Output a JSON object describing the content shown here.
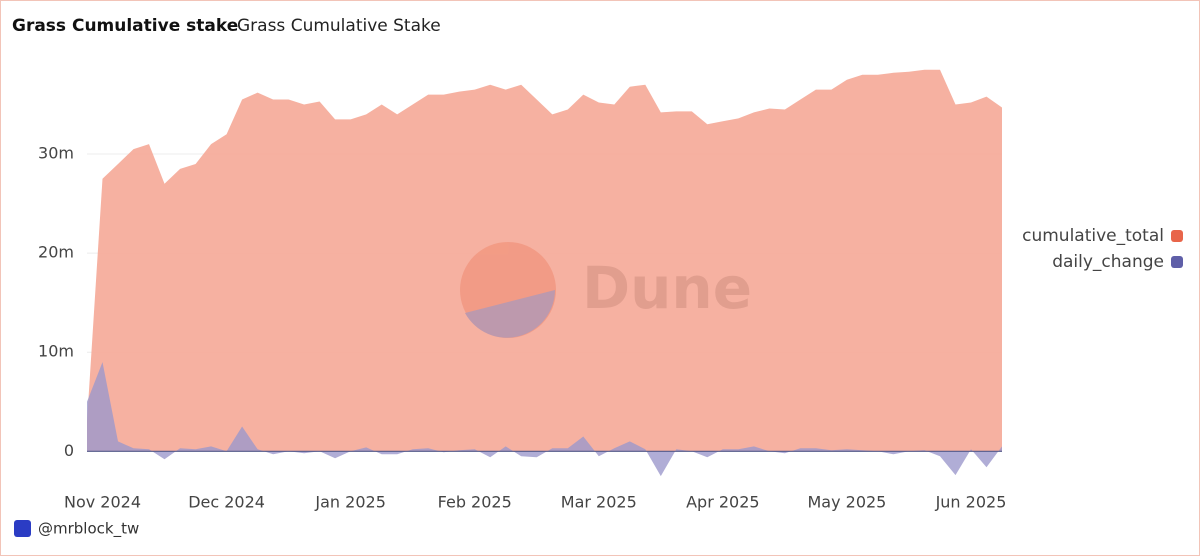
{
  "chart_data": {
    "type": "area",
    "title": "Grass Cumulative stake",
    "subtitle": "Grass Cumulative Stake",
    "watermark": "Dune",
    "credit": "@mrblock_tw",
    "grid": true,
    "legend": "right",
    "categories": [
      null,
      "Nov 2024",
      null,
      null,
      null,
      null,
      null,
      null,
      null,
      "Dec 2024",
      null,
      null,
      null,
      null,
      null,
      null,
      null,
      "Jan 2025",
      null,
      null,
      null,
      null,
      null,
      null,
      null,
      "Feb 2025",
      null,
      null,
      null,
      null,
      null,
      null,
      null,
      "Mar 2025",
      null,
      null,
      null,
      null,
      null,
      null,
      null,
      "Apr 2025",
      null,
      null,
      null,
      null,
      null,
      null,
      null,
      "May 2025",
      null,
      null,
      null,
      null,
      null,
      null,
      null,
      "Jun 2025",
      null,
      null
    ],
    "ylim": [
      -3500000,
      40500000
    ],
    "yticks": [
      0,
      {
        "value": 10000000,
        "label": "10m"
      },
      {
        "value": 20000000,
        "label": "20m"
      },
      {
        "value": 30000000,
        "label": "30m"
      }
    ],
    "series": [
      {
        "name": "cumulative_total",
        "color": "#e8654a",
        "fill": "#f6ad9c",
        "values": [
          3000000,
          27500000,
          29000000,
          30500000,
          31000000,
          27000000,
          28500000,
          29000000,
          31000000,
          32000000,
          35500000,
          36200000,
          35500000,
          35500000,
          35000000,
          35300000,
          33500000,
          33500000,
          34000000,
          35000000,
          34000000,
          35000000,
          36000000,
          36000000,
          36300000,
          36500000,
          37000000,
          36500000,
          37000000,
          35500000,
          34000000,
          34500000,
          36000000,
          35200000,
          35000000,
          36800000,
          37000000,
          34200000,
          34300000,
          34300000,
          33000000,
          33300000,
          33600000,
          34200000,
          34600000,
          34500000,
          35500000,
          36500000,
          36500000,
          37500000,
          38000000,
          38000000,
          38200000,
          38300000,
          38500000,
          38500000,
          35000000,
          35200000,
          35800000,
          34700000
        ]
      },
      {
        "name": "daily_change",
        "color": "#5f5fa8",
        "fill": "#9c98cc",
        "values": [
          5000000,
          9000000,
          1000000,
          300000,
          200000,
          -800000,
          300000,
          200000,
          500000,
          0,
          2500000,
          200000,
          -300000,
          0,
          -200000,
          0,
          -700000,
          0,
          400000,
          -300000,
          -300000,
          200000,
          300000,
          -100000,
          100000,
          200000,
          -600000,
          500000,
          -500000,
          -600000,
          300000,
          300000,
          1500000,
          -500000,
          300000,
          1000000,
          200000,
          -2500000,
          200000,
          0,
          -600000,
          200000,
          200000,
          500000,
          0,
          -200000,
          300000,
          300000,
          100000,
          200000,
          100000,
          0,
          -300000,
          0,
          100000,
          -500000,
          -2400000,
          200000,
          -1600000,
          500000
        ]
      }
    ]
  }
}
